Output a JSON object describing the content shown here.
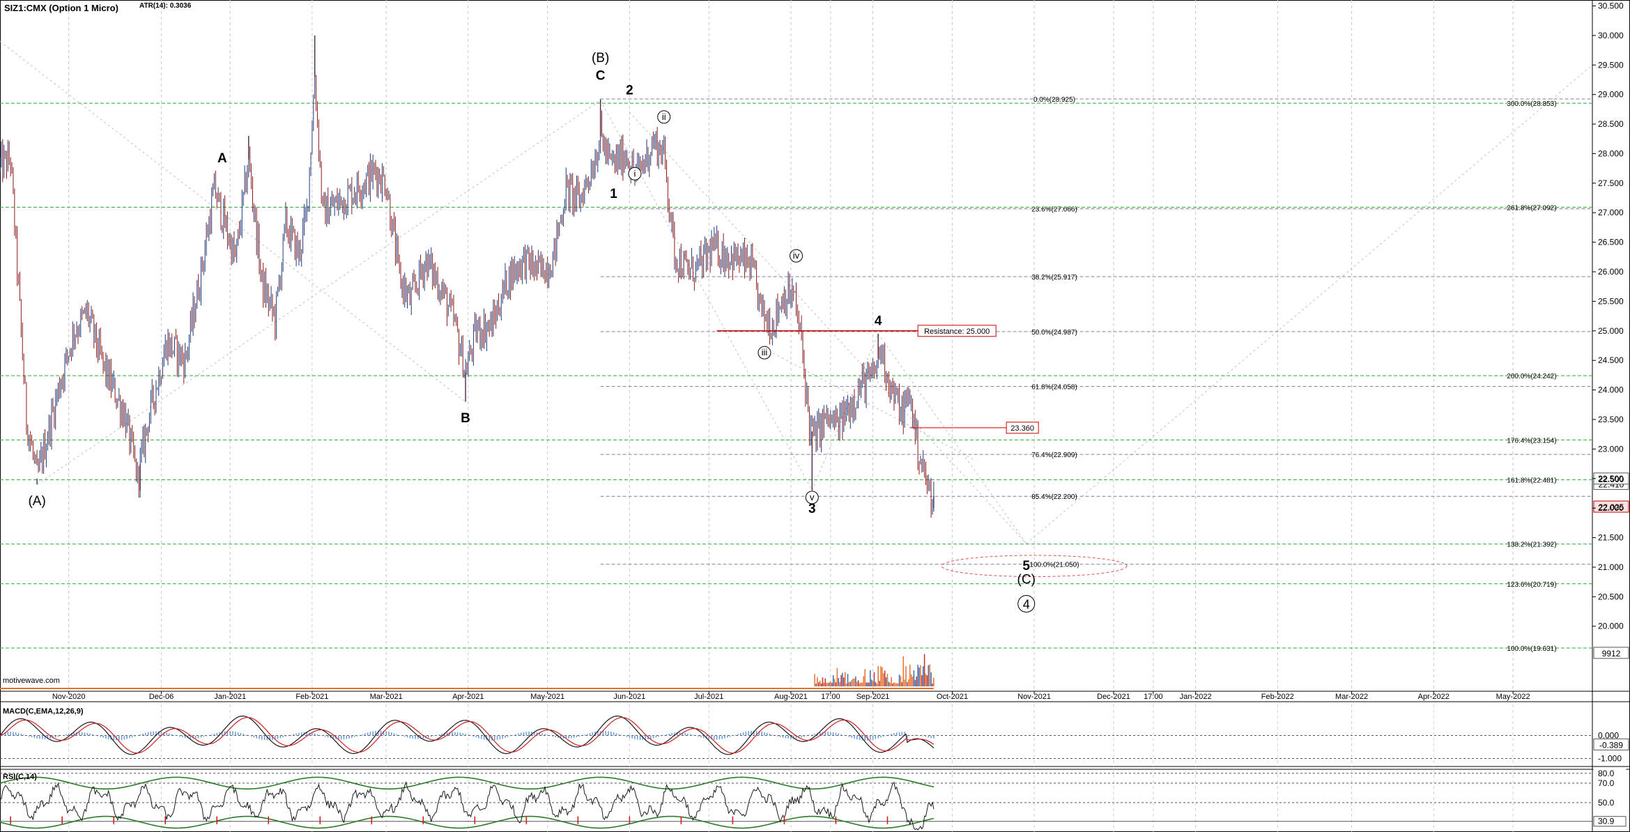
{
  "header": {
    "symbol": "SIZ1:CMX (Option 1 Micro)",
    "atr": "ATR(14): 0.3036"
  },
  "watermark": "motivewave.com",
  "chart_data": [
    {
      "type": "candlestick",
      "title": "SIZ1:CMX (Option 1 Micro)",
      "y_axis": {
        "min": 18.9,
        "max": 30.6,
        "ticks": [
          "20.000",
          "20.500",
          "21.000",
          "21.500",
          "22.000",
          "22.500",
          "23.000",
          "23.500",
          "24.000",
          "24.500",
          "25.000",
          "25.500",
          "26.000",
          "26.500",
          "27.000",
          "27.500",
          "28.000",
          "28.500",
          "29.000",
          "29.500",
          "30.000",
          "30.500"
        ]
      },
      "x_axis": {
        "start_date": "2020-10-06",
        "end_date": "2022-05-31",
        "ticks": [
          {
            "label": "Nov-2020",
            "date": "2020-11-01"
          },
          {
            "label": "Dec-06",
            "date": "2020-12-06"
          },
          {
            "label": "Jan-2021",
            "date": "2021-01-01"
          },
          {
            "label": "Feb-2021",
            "date": "2021-02-01"
          },
          {
            "label": "Mar-2021",
            "date": "2021-03-01"
          },
          {
            "label": "Apr-2021",
            "date": "2021-04-01"
          },
          {
            "label": "May-2021",
            "date": "2021-05-01"
          },
          {
            "label": "Jun-2021",
            "date": "2021-06-01"
          },
          {
            "label": "Jul-2021",
            "date": "2021-07-01"
          },
          {
            "label": "Aug-2021",
            "date": "2021-08-01"
          },
          {
            "label": "17:00",
            "date": "2021-08-16"
          },
          {
            "label": "Sep-2021",
            "date": "2021-09-01"
          },
          {
            "label": "Oct-2021",
            "date": "2021-10-01"
          },
          {
            "label": "Nov-2021",
            "date": "2021-11-01"
          },
          {
            "label": "Dec-2021",
            "date": "2021-12-01"
          },
          {
            "label": "17:00",
            "date": "2021-12-16"
          },
          {
            "label": "Jan-2022",
            "date": "2022-01-01"
          },
          {
            "label": "Feb-2022",
            "date": "2022-02-01"
          },
          {
            "label": "Mar-2022",
            "date": "2022-03-01"
          },
          {
            "label": "Apr-2022",
            "date": "2022-04-01"
          },
          {
            "label": "May-2022",
            "date": "2022-05-01"
          }
        ]
      },
      "price_path": [
        {
          "date": "2020-10-06",
          "y": 27.8
        },
        {
          "date": "2020-10-10",
          "y": 27.9
        },
        {
          "date": "2020-10-16",
          "y": 23.5
        },
        {
          "date": "2020-10-20",
          "y": 22.5
        },
        {
          "date": "2020-10-28",
          "y": 24.0
        },
        {
          "date": "2020-11-03",
          "y": 25.0
        },
        {
          "date": "2020-11-08",
          "y": 25.3
        },
        {
          "date": "2020-11-14",
          "y": 24.4
        },
        {
          "date": "2020-11-22",
          "y": 23.6
        },
        {
          "date": "2020-11-27",
          "y": 22.5
        },
        {
          "date": "2020-12-01",
          "y": 23.5
        },
        {
          "date": "2020-12-08",
          "y": 24.8
        },
        {
          "date": "2020-12-15",
          "y": 24.5
        },
        {
          "date": "2020-12-21",
          "y": 26.0
        },
        {
          "date": "2020-12-26",
          "y": 27.4
        },
        {
          "date": "2021-01-03",
          "y": 26.2
        },
        {
          "date": "2021-01-08",
          "y": 27.9
        },
        {
          "date": "2021-01-13",
          "y": 25.8
        },
        {
          "date": "2021-01-18",
          "y": 25.2
        },
        {
          "date": "2021-01-22",
          "y": 26.8
        },
        {
          "date": "2021-01-27",
          "y": 26.3
        },
        {
          "date": "2021-01-30",
          "y": 27.0
        },
        {
          "date": "2021-02-02",
          "y": 29.3
        },
        {
          "date": "2021-02-05",
          "y": 27.0
        },
        {
          "date": "2021-02-12",
          "y": 27.2
        },
        {
          "date": "2021-02-20",
          "y": 27.5
        },
        {
          "date": "2021-02-25",
          "y": 27.7
        },
        {
          "date": "2021-03-01",
          "y": 27.5
        },
        {
          "date": "2021-03-06",
          "y": 25.9
        },
        {
          "date": "2021-03-10",
          "y": 25.5
        },
        {
          "date": "2021-03-16",
          "y": 26.2
        },
        {
          "date": "2021-03-22",
          "y": 25.7
        },
        {
          "date": "2021-03-27",
          "y": 25.1
        },
        {
          "date": "2021-03-31",
          "y": 24.3
        },
        {
          "date": "2021-04-04",
          "y": 25.0
        },
        {
          "date": "2021-04-10",
          "y": 25.1
        },
        {
          "date": "2021-04-16",
          "y": 25.9
        },
        {
          "date": "2021-04-22",
          "y": 26.2
        },
        {
          "date": "2021-04-28",
          "y": 26.0
        },
        {
          "date": "2021-05-03",
          "y": 26.2
        },
        {
          "date": "2021-05-08",
          "y": 27.4
        },
        {
          "date": "2021-05-13",
          "y": 27.2
        },
        {
          "date": "2021-05-18",
          "y": 27.8
        },
        {
          "date": "2021-05-21",
          "y": 28.3
        },
        {
          "date": "2021-05-25",
          "y": 27.8
        },
        {
          "date": "2021-05-31",
          "y": 28.0
        },
        {
          "date": "2021-06-03",
          "y": 27.6
        },
        {
          "date": "2021-06-07",
          "y": 27.9
        },
        {
          "date": "2021-06-10",
          "y": 28.2
        },
        {
          "date": "2021-06-14",
          "y": 28.0
        },
        {
          "date": "2021-06-18",
          "y": 26.3
        },
        {
          "date": "2021-06-23",
          "y": 26.0
        },
        {
          "date": "2021-06-28",
          "y": 26.1
        },
        {
          "date": "2021-07-02",
          "y": 26.4
        },
        {
          "date": "2021-07-07",
          "y": 26.3
        },
        {
          "date": "2021-07-12",
          "y": 26.2
        },
        {
          "date": "2021-07-17",
          "y": 26.1
        },
        {
          "date": "2021-07-21",
          "y": 25.3
        },
        {
          "date": "2021-07-25",
          "y": 25.1
        },
        {
          "date": "2021-07-29",
          "y": 25.6
        },
        {
          "date": "2021-08-02",
          "y": 25.6
        },
        {
          "date": "2021-08-05",
          "y": 24.8
        },
        {
          "date": "2021-08-08",
          "y": 23.4
        },
        {
          "date": "2021-08-10",
          "y": 23.2
        },
        {
          "date": "2021-08-14",
          "y": 23.5
        },
        {
          "date": "2021-08-19",
          "y": 23.4
        },
        {
          "date": "2021-08-24",
          "y": 23.8
        },
        {
          "date": "2021-08-28",
          "y": 24.1
        },
        {
          "date": "2021-09-01",
          "y": 24.2
        },
        {
          "date": "2021-09-04",
          "y": 24.7
        },
        {
          "date": "2021-09-08",
          "y": 24.0
        },
        {
          "date": "2021-09-12",
          "y": 23.6
        },
        {
          "date": "2021-09-15",
          "y": 23.9
        },
        {
          "date": "2021-09-18",
          "y": 23.0
        },
        {
          "date": "2021-09-22",
          "y": 22.3
        },
        {
          "date": "2021-09-24",
          "y": 22.2
        }
      ],
      "extremes": [
        {
          "date": "2020-10-20",
          "y": 22.4
        },
        {
          "date": "2020-11-28",
          "y": 22.3
        },
        {
          "date": "2021-02-02",
          "y": 30.0
        },
        {
          "date": "2021-01-08",
          "y": 28.3
        },
        {
          "date": "2021-03-31",
          "y": 23.8
        },
        {
          "date": "2021-05-21",
          "y": 28.92
        },
        {
          "date": "2021-08-09",
          "y": 22.3
        },
        {
          "date": "2021-09-03",
          "y": 24.95
        },
        {
          "date": "2021-09-24",
          "y": 22.0
        }
      ],
      "horizontal_levels": [
        {
          "label": "0.0%(28.925)",
          "value": 28.925,
          "color": "#7f7f9f",
          "from": "2021-05-21"
        },
        {
          "label": "23.6%(27.066)",
          "value": 27.066,
          "color": "#7f7f9f",
          "from": "2021-05-21"
        },
        {
          "label": "38.2%(25.917)",
          "value": 25.917,
          "color": "#7f7f9f",
          "from": "2021-05-21"
        },
        {
          "label": "50.0%(24.987)",
          "value": 24.987,
          "color": "#7f7f9f",
          "from": "2021-05-21"
        },
        {
          "label": "61.8%(24.058)",
          "value": 24.058,
          "color": "#7f7f9f",
          "from": "2021-05-21"
        },
        {
          "label": "76.4%(22.909)",
          "value": 22.909,
          "color": "#7f7f9f",
          "from": "2021-05-21"
        },
        {
          "label": "85.4%(22.200)",
          "value": 22.2,
          "color": "#7f7f9f",
          "from": "2021-05-21"
        },
        {
          "label": "100.0%(21.050)",
          "value": 21.05,
          "color": "#7f7f9f",
          "from": "2021-05-21"
        },
        {
          "label": "300.0%(28.853)",
          "value": 28.853,
          "color": "#2ea82e",
          "from": "2020-10-06"
        },
        {
          "label": "261.8%(27.092)",
          "value": 27.092,
          "color": "#2ea82e",
          "from": "2020-10-06"
        },
        {
          "label": "200.0%(24.242)",
          "value": 24.242,
          "color": "#2ea82e",
          "from": "2020-10-06"
        },
        {
          "label": "176.4%(23.154)",
          "value": 23.154,
          "color": "#2ea82e",
          "from": "2020-10-06"
        },
        {
          "label": "161.8%(22.481)",
          "value": 22.481,
          "color": "#2ea82e",
          "from": "2020-10-06"
        },
        {
          "label": "138.2%(21.392)",
          "value": 21.392,
          "color": "#2ea82e",
          "from": "2020-10-06"
        },
        {
          "label": "123.6%(20.719)",
          "value": 20.719,
          "color": "#2ea82e",
          "from": "2020-10-06"
        },
        {
          "label": "100.0%(19.631)",
          "value": 19.631,
          "color": "#2ea82e",
          "from": "2020-10-06"
        }
      ],
      "resistance": {
        "label": "Resistance: 25.000",
        "value": 25.0,
        "from": "2021-07-04",
        "to": "2021-10-17",
        "color": "#cc0000"
      },
      "price_box": {
        "label": "23.360",
        "value": 23.36,
        "from": "2021-09-15",
        "to": "2021-10-22",
        "color": "#cc0000"
      },
      "target_ellipse": {
        "from": "2021-09-27",
        "to": "2021-12-06",
        "center": 21.02,
        "low": 20.83,
        "high": 21.19,
        "color": "#e05050"
      },
      "wave_labels": [
        {
          "text": "(A)",
          "date": "2020-10-20",
          "y": 22.05,
          "style": "paren"
        },
        {
          "text": "A",
          "date": "2020-12-29",
          "y": 27.85,
          "style": "bold"
        },
        {
          "text": "B",
          "date": "2021-03-31",
          "y": 23.45,
          "style": "bold"
        },
        {
          "text": "(B)",
          "date": "2021-05-21",
          "y": 29.55,
          "style": "paren"
        },
        {
          "text": "C",
          "date": "2021-05-21",
          "y": 29.25,
          "style": "bold"
        },
        {
          "text": "1",
          "date": "2021-05-26",
          "y": 27.25,
          "style": "bold"
        },
        {
          "text": "2",
          "date": "2021-06-01",
          "y": 29.0,
          "style": "bold"
        },
        {
          "text": "ii",
          "date": "2021-06-14",
          "y": 28.62,
          "style": "circle"
        },
        {
          "text": "i",
          "date": "2021-06-03",
          "y": 27.66,
          "style": "circle"
        },
        {
          "text": "iv",
          "date": "2021-08-03",
          "y": 26.27,
          "style": "circle"
        },
        {
          "text": "iii",
          "date": "2021-07-22",
          "y": 24.63,
          "style": "circle"
        },
        {
          "text": "4",
          "date": "2021-09-03",
          "y": 25.1,
          "style": "bold"
        },
        {
          "text": "v",
          "date": "2021-08-09",
          "y": 22.18,
          "style": "circle"
        },
        {
          "text": "3",
          "date": "2021-08-09",
          "y": 21.92,
          "style": "bold"
        },
        {
          "text": "5",
          "date": "2021-10-29",
          "y": 20.95,
          "style": "bold"
        },
        {
          "text": "(C)",
          "date": "2021-10-29",
          "y": 20.72,
          "style": "paren"
        },
        {
          "text": "4",
          "date": "2021-10-29",
          "y": 20.38,
          "style": "circle"
        }
      ],
      "price_tags": [
        {
          "label": "22.410",
          "value": 22.41,
          "color": "#555555",
          "fill": "#ffffff"
        },
        {
          "label": "22.025",
          "value": 22.025,
          "color": "#cc0000",
          "fill": "#fde0e0"
        },
        {
          "label": "22.500",
          "value": 22.5,
          "color": "#555555",
          "fill": "#ffffff"
        },
        {
          "label": "9912",
          "value": 19.55,
          "color": "#555555",
          "fill": "#ffffff"
        }
      ]
    },
    {
      "type": "line",
      "title": "MACD(C,EMA,12,26,9)",
      "y_axis": {
        "ticks": [
          "0.000",
          "-1.000"
        ],
        "min": -1.35,
        "max": 1.35
      },
      "current_value": "-0.389",
      "series": [
        {
          "name": "MACD"
        },
        {
          "name": "Signal"
        },
        {
          "name": "Histogram"
        }
      ]
    },
    {
      "type": "line",
      "title": "RSI(C,14)",
      "y_axis": {
        "ticks": [
          "80.0",
          "70.0",
          "50.0",
          "30.9"
        ],
        "min": 20,
        "max": 82
      },
      "current_value": "30.9",
      "series": [
        {
          "name": "RSI"
        }
      ]
    }
  ]
}
